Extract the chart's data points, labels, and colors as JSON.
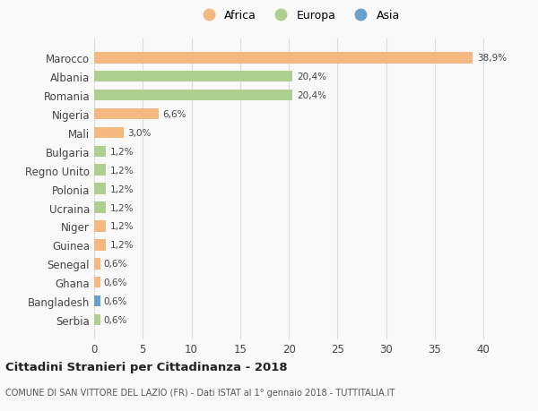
{
  "countries": [
    "Marocco",
    "Albania",
    "Romania",
    "Nigeria",
    "Mali",
    "Bulgaria",
    "Regno Unito",
    "Polonia",
    "Ucraina",
    "Niger",
    "Guinea",
    "Senegal",
    "Ghana",
    "Bangladesh",
    "Serbia"
  ],
  "values": [
    38.9,
    20.4,
    20.4,
    6.6,
    3.0,
    1.2,
    1.2,
    1.2,
    1.2,
    1.2,
    1.2,
    0.6,
    0.6,
    0.6,
    0.6
  ],
  "labels": [
    "38,9%",
    "20,4%",
    "20,4%",
    "6,6%",
    "3,0%",
    "1,2%",
    "1,2%",
    "1,2%",
    "1,2%",
    "1,2%",
    "1,2%",
    "0,6%",
    "0,6%",
    "0,6%",
    "0,6%"
  ],
  "continents": [
    "Africa",
    "Europa",
    "Europa",
    "Africa",
    "Africa",
    "Europa",
    "Europa",
    "Europa",
    "Europa",
    "Africa",
    "Africa",
    "Africa",
    "Africa",
    "Asia",
    "Europa"
  ],
  "colors": {
    "Africa": "#F5B880",
    "Europa": "#AECF8F",
    "Asia": "#6B9FCC"
  },
  "xlim": [
    0,
    42
  ],
  "xticks": [
    0,
    5,
    10,
    15,
    20,
    25,
    30,
    35,
    40
  ],
  "title": "Cittadini Stranieri per Cittadinanza - 2018",
  "subtitle": "COMUNE DI SAN VITTORE DEL LAZIO (FR) - Dati ISTAT al 1° gennaio 2018 - TUTTITALIA.IT",
  "background_color": "#F9F9F9",
  "grid_color": "#DDDDDD"
}
